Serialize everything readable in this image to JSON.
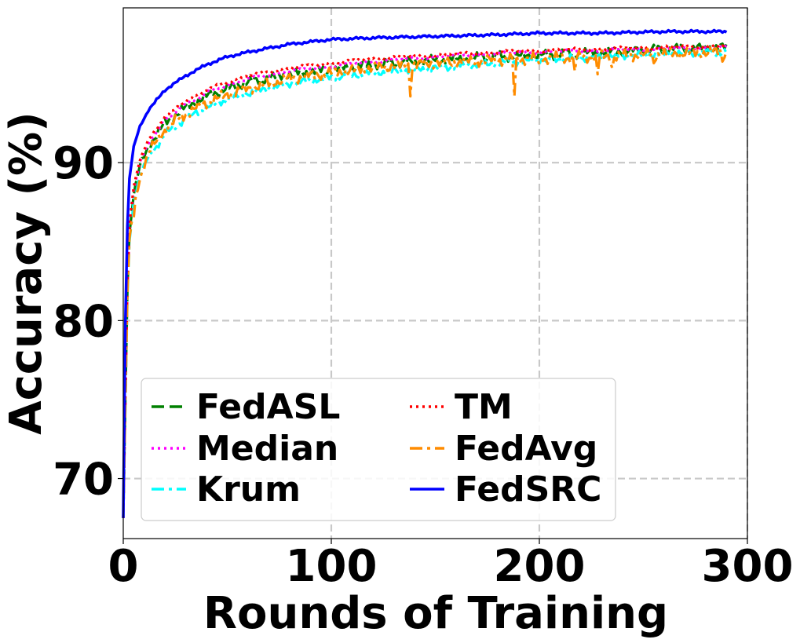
{
  "chart_data": {
    "type": "line",
    "title": "",
    "xlabel": "Rounds of Training",
    "ylabel": "Accuracy (%)",
    "xlim": [
      0,
      300
    ],
    "ylim": [
      66.2,
      99.8
    ],
    "xticks": [
      0,
      100,
      200,
      300
    ],
    "xtick_labels": [
      "0",
      "100",
      "200",
      "300"
    ],
    "yticks": [
      70,
      80,
      90
    ],
    "ytick_labels": [
      "70",
      "80",
      "90"
    ],
    "grid": true,
    "legend_position": "lower-left",
    "legend_columns": 2,
    "series": [
      {
        "name": "FedASL",
        "color": "#008000",
        "style": "dashed",
        "x": [
          0,
          1,
          2,
          3,
          5,
          8,
          12,
          20,
          30,
          40,
          50,
          60,
          80,
          100,
          120,
          150,
          180,
          200,
          230,
          260,
          290
        ],
        "y": [
          67.5,
          75.0,
          82.0,
          85.5,
          88.0,
          89.8,
          91.0,
          92.5,
          93.5,
          94.2,
          94.7,
          95.1,
          95.6,
          95.9,
          96.2,
          96.5,
          96.7,
          96.8,
          97.0,
          97.2,
          97.3
        ]
      },
      {
        "name": "Median",
        "color": "#ff00ff",
        "style": "dotted",
        "x": [
          0,
          1,
          2,
          3,
          5,
          8,
          12,
          20,
          30,
          40,
          50,
          60,
          80,
          100,
          120,
          150,
          180,
          200,
          230,
          260,
          290
        ],
        "y": [
          67.5,
          75.0,
          82.0,
          85.8,
          88.3,
          90.0,
          91.2,
          92.7,
          93.7,
          94.4,
          94.9,
          95.3,
          95.8,
          96.1,
          96.4,
          96.7,
          96.9,
          97.0,
          97.1,
          97.2,
          97.3
        ]
      },
      {
        "name": "Krum",
        "color": "#00ffff",
        "style": "dashdot",
        "x": [
          0,
          1,
          2,
          3,
          5,
          8,
          12,
          20,
          30,
          40,
          50,
          60,
          80,
          100,
          120,
          150,
          180,
          200,
          230,
          260,
          290
        ],
        "y": [
          67.5,
          74.5,
          81.5,
          85.0,
          87.5,
          89.2,
          90.3,
          91.8,
          92.8,
          93.5,
          94.0,
          94.4,
          95.0,
          95.4,
          95.7,
          96.0,
          96.3,
          96.5,
          96.7,
          96.9,
          97.0
        ]
      },
      {
        "name": "TM",
        "color": "#ff0000",
        "style": "dotted",
        "x": [
          0,
          1,
          2,
          3,
          5,
          8,
          12,
          20,
          30,
          40,
          50,
          60,
          80,
          100,
          120,
          150,
          180,
          200,
          230,
          260,
          290
        ],
        "y": [
          67.5,
          75.2,
          82.3,
          86.0,
          88.5,
          90.2,
          91.4,
          92.9,
          93.9,
          94.6,
          95.1,
          95.5,
          96.0,
          96.3,
          96.6,
          96.8,
          97.0,
          97.1,
          97.2,
          97.3,
          97.4
        ]
      },
      {
        "name": "FedAvg",
        "color": "#ff8c00",
        "style": "dashdot",
        "x": [
          0,
          1,
          2,
          3,
          5,
          8,
          12,
          20,
          30,
          40,
          50,
          60,
          80,
          100,
          120,
          150,
          180,
          200,
          230,
          260,
          290
        ],
        "y": [
          67.5,
          74.8,
          81.8,
          85.2,
          87.2,
          89.0,
          90.6,
          92.1,
          93.1,
          93.8,
          94.3,
          94.7,
          95.3,
          95.7,
          96.0,
          96.3,
          96.5,
          96.6,
          96.7,
          96.9,
          97.0
        ],
        "dips": [
          [
            5,
            86.5
          ],
          [
            138,
            94.2
          ],
          [
            188,
            94.2
          ],
          [
            200,
            96.2
          ],
          [
            217,
            95.8
          ],
          [
            228,
            95.6
          ],
          [
            235,
            96.0
          ],
          [
            255,
            96.3
          ],
          [
            288,
            96.4
          ]
        ]
      },
      {
        "name": "FedSRC",
        "color": "#0000ff",
        "style": "solid",
        "x": [
          0,
          1,
          2,
          3,
          5,
          8,
          12,
          20,
          30,
          40,
          50,
          60,
          80,
          100,
          120,
          150,
          180,
          200,
          230,
          260,
          290
        ],
        "y": [
          67.5,
          80.0,
          86.0,
          89.0,
          91.0,
          92.3,
          93.3,
          94.6,
          95.5,
          96.2,
          96.7,
          97.0,
          97.5,
          97.8,
          97.9,
          98.0,
          98.1,
          98.2,
          98.2,
          98.3,
          98.3
        ]
      }
    ]
  }
}
